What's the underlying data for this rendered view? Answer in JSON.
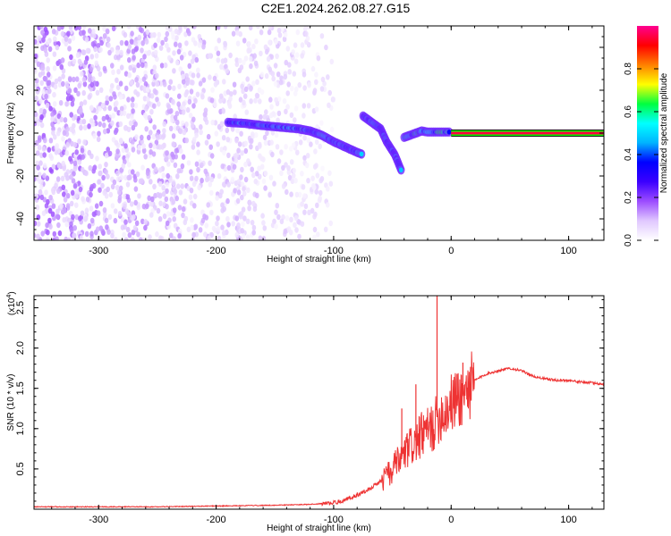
{
  "title": "C2E1.2024.262.08.27.G15",
  "chart_data": [
    {
      "type": "heatmap",
      "xlabel": "Height of straight line (km)",
      "ylabel": "Frequency (Hz)",
      "xlim": [
        -355,
        130
      ],
      "ylim": [
        -50,
        50
      ],
      "xticks": [
        -300,
        -200,
        -100,
        0,
        100
      ],
      "yticks": [
        -40,
        -20,
        0,
        20,
        40
      ],
      "colorbar": {
        "label": "Normalized spectral amplitude",
        "range": [
          0,
          1
        ],
        "ticks": [
          0.0,
          0.2,
          0.4,
          0.6,
          0.8
        ],
        "tick_labels": [
          "0.0",
          "0.2",
          "0.4",
          "0.6",
          "0.8"
        ],
        "colormap": [
          "#ffffff",
          "#e0c8ff",
          "#9c4cff",
          "#3b00ff",
          "#0000ff",
          "#00b4ff",
          "#00ffff",
          "#00ff40",
          "#ffff00",
          "#ff8000",
          "#ff0000",
          "#ff0090"
        ]
      },
      "features": [
        {
          "name": "noise",
          "x_range": [
            -355,
            -100
          ],
          "y_range": [
            -50,
            50
          ],
          "amplitude": 0.1
        },
        {
          "name": "trace",
          "points": [
            [
              -190,
              5
            ],
            [
              -175,
              4.5
            ],
            [
              -160,
              3.5
            ],
            [
              -150,
              3
            ],
            [
              -140,
              2.5
            ],
            [
              -130,
              2
            ],
            [
              -120,
              1
            ],
            [
              -110,
              -1
            ],
            [
              -100,
              -4
            ],
            [
              -90,
              -6.5
            ],
            [
              -80,
              -9
            ],
            [
              -75,
              -10
            ]
          ],
          "amplitude": 0.45
        },
        {
          "name": "trace",
          "points": [
            [
              -75,
              8
            ],
            [
              -70,
              6
            ],
            [
              -60,
              2
            ],
            [
              -55,
              -4
            ],
            [
              -48,
              -10
            ],
            [
              -45,
              -14
            ],
            [
              -42,
              -18
            ]
          ],
          "amplitude": 0.4
        },
        {
          "name": "trace",
          "points": [
            [
              -40,
              -2
            ],
            [
              -35,
              -1
            ],
            [
              -30,
              0
            ],
            [
              -25,
              1
            ],
            [
              -20,
              0.5
            ],
            [
              -10,
              0.5
            ],
            [
              0,
              0.5
            ]
          ],
          "amplitude": 0.5
        },
        {
          "name": "line",
          "x_range": [
            0,
            130
          ],
          "y": 0,
          "amplitude": 0.95
        }
      ]
    },
    {
      "type": "line",
      "xlabel": "Height of straight line (km)",
      "ylabel": "SNR (10 * v/v)",
      "y_multiplier_label": "(x10",
      "y_multiplier_exp": "4",
      "y_multiplier_close": ")",
      "xlim": [
        -355,
        130
      ],
      "ylim": [
        0,
        2.65
      ],
      "xticks": [
        -300,
        -200,
        -100,
        0,
        100
      ],
      "yticks": [
        0.5,
        1.0,
        1.5,
        2.0,
        2.5
      ],
      "ytick_labels": [
        "0.5",
        "1.0",
        "1.5",
        "2.0",
        "2.5"
      ],
      "color": "#ee3333",
      "x": [
        -355,
        -300,
        -250,
        -200,
        -150,
        -120,
        -100,
        -90,
        -80,
        -70,
        -60,
        -50,
        -45,
        -40,
        -35,
        -30,
        -25,
        -20,
        -15,
        -12,
        -10,
        -5,
        0,
        5,
        10,
        15,
        20,
        30,
        40,
        50,
        60,
        70,
        80,
        90,
        100,
        110,
        120,
        130
      ],
      "values": [
        0.03,
        0.03,
        0.03,
        0.04,
        0.05,
        0.06,
        0.08,
        0.12,
        0.18,
        0.25,
        0.35,
        0.5,
        0.6,
        0.7,
        0.8,
        0.85,
        0.95,
        1.0,
        1.05,
        1.15,
        1.2,
        1.25,
        1.35,
        1.4,
        1.45,
        1.55,
        1.6,
        1.68,
        1.72,
        1.75,
        1.72,
        1.65,
        1.62,
        1.6,
        1.6,
        1.58,
        1.57,
        1.55
      ],
      "spikes": [
        [
          -12,
          2.65
        ],
        [
          10,
          1.82
        ],
        [
          5,
          1.68
        ],
        [
          -30,
          1.55
        ],
        [
          -42,
          1.25
        ]
      ]
    }
  ]
}
